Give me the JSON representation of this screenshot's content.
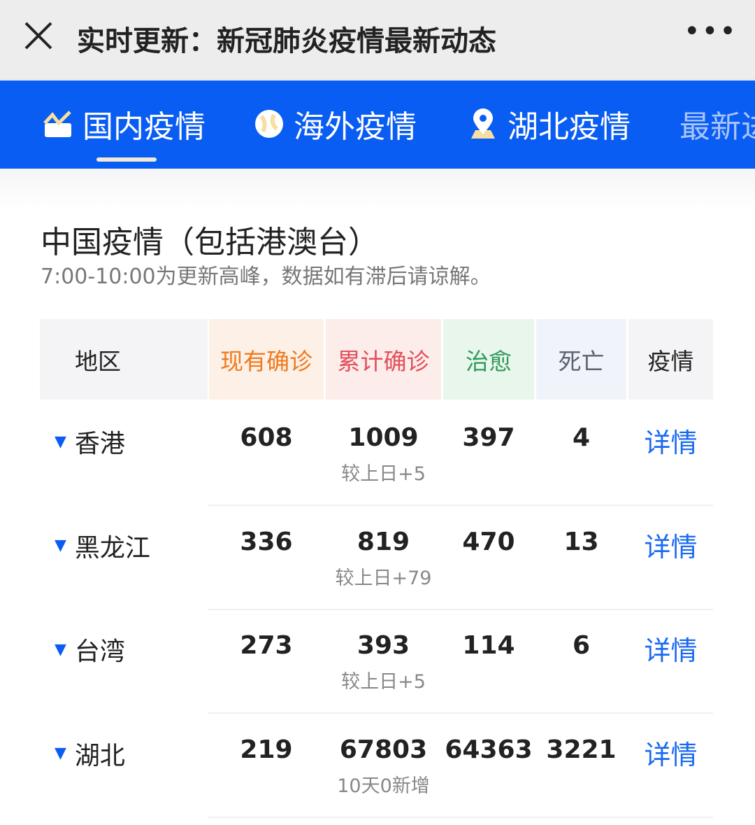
{
  "header": {
    "title": "实时更新：新冠肺炎疫情最新动态",
    "more": "•••"
  },
  "tabs": [
    {
      "label": "国内疫情",
      "icon": "chart-icon"
    },
    {
      "label": "海外疫情",
      "icon": "globe-icon"
    },
    {
      "label": "湖北疫情",
      "icon": "location-pin-icon"
    },
    {
      "label": "最新进"
    }
  ],
  "section": {
    "title": "中国疫情（包括港澳台）",
    "subtitle": "7:00-10:00为更新高峰，数据如有滞后请谅解。"
  },
  "table": {
    "headers": [
      "地区",
      "现有确诊",
      "累计确诊",
      "治愈",
      "死亡",
      "疫情"
    ],
    "header_colors": {
      "current": "#f07a1e",
      "total": "#e2505b",
      "cured": "#2f9a5a",
      "death": "#5b6270"
    },
    "rows": [
      {
        "region": "香港",
        "current": "608",
        "total": "1009",
        "note": "较上日+5",
        "cured": "397",
        "death": "4",
        "detail": "详情"
      },
      {
        "region": "黑龙江",
        "current": "336",
        "total": "819",
        "note": "较上日+79",
        "cured": "470",
        "death": "13",
        "detail": "详情"
      },
      {
        "region": "台湾",
        "current": "273",
        "total": "393",
        "note": "较上日+5",
        "cured": "114",
        "death": "6",
        "detail": "详情"
      },
      {
        "region": "湖北",
        "current": "219",
        "total": "67803",
        "note": "10天0新增",
        "cured": "64363",
        "death": "3221",
        "detail": "详情"
      }
    ]
  }
}
